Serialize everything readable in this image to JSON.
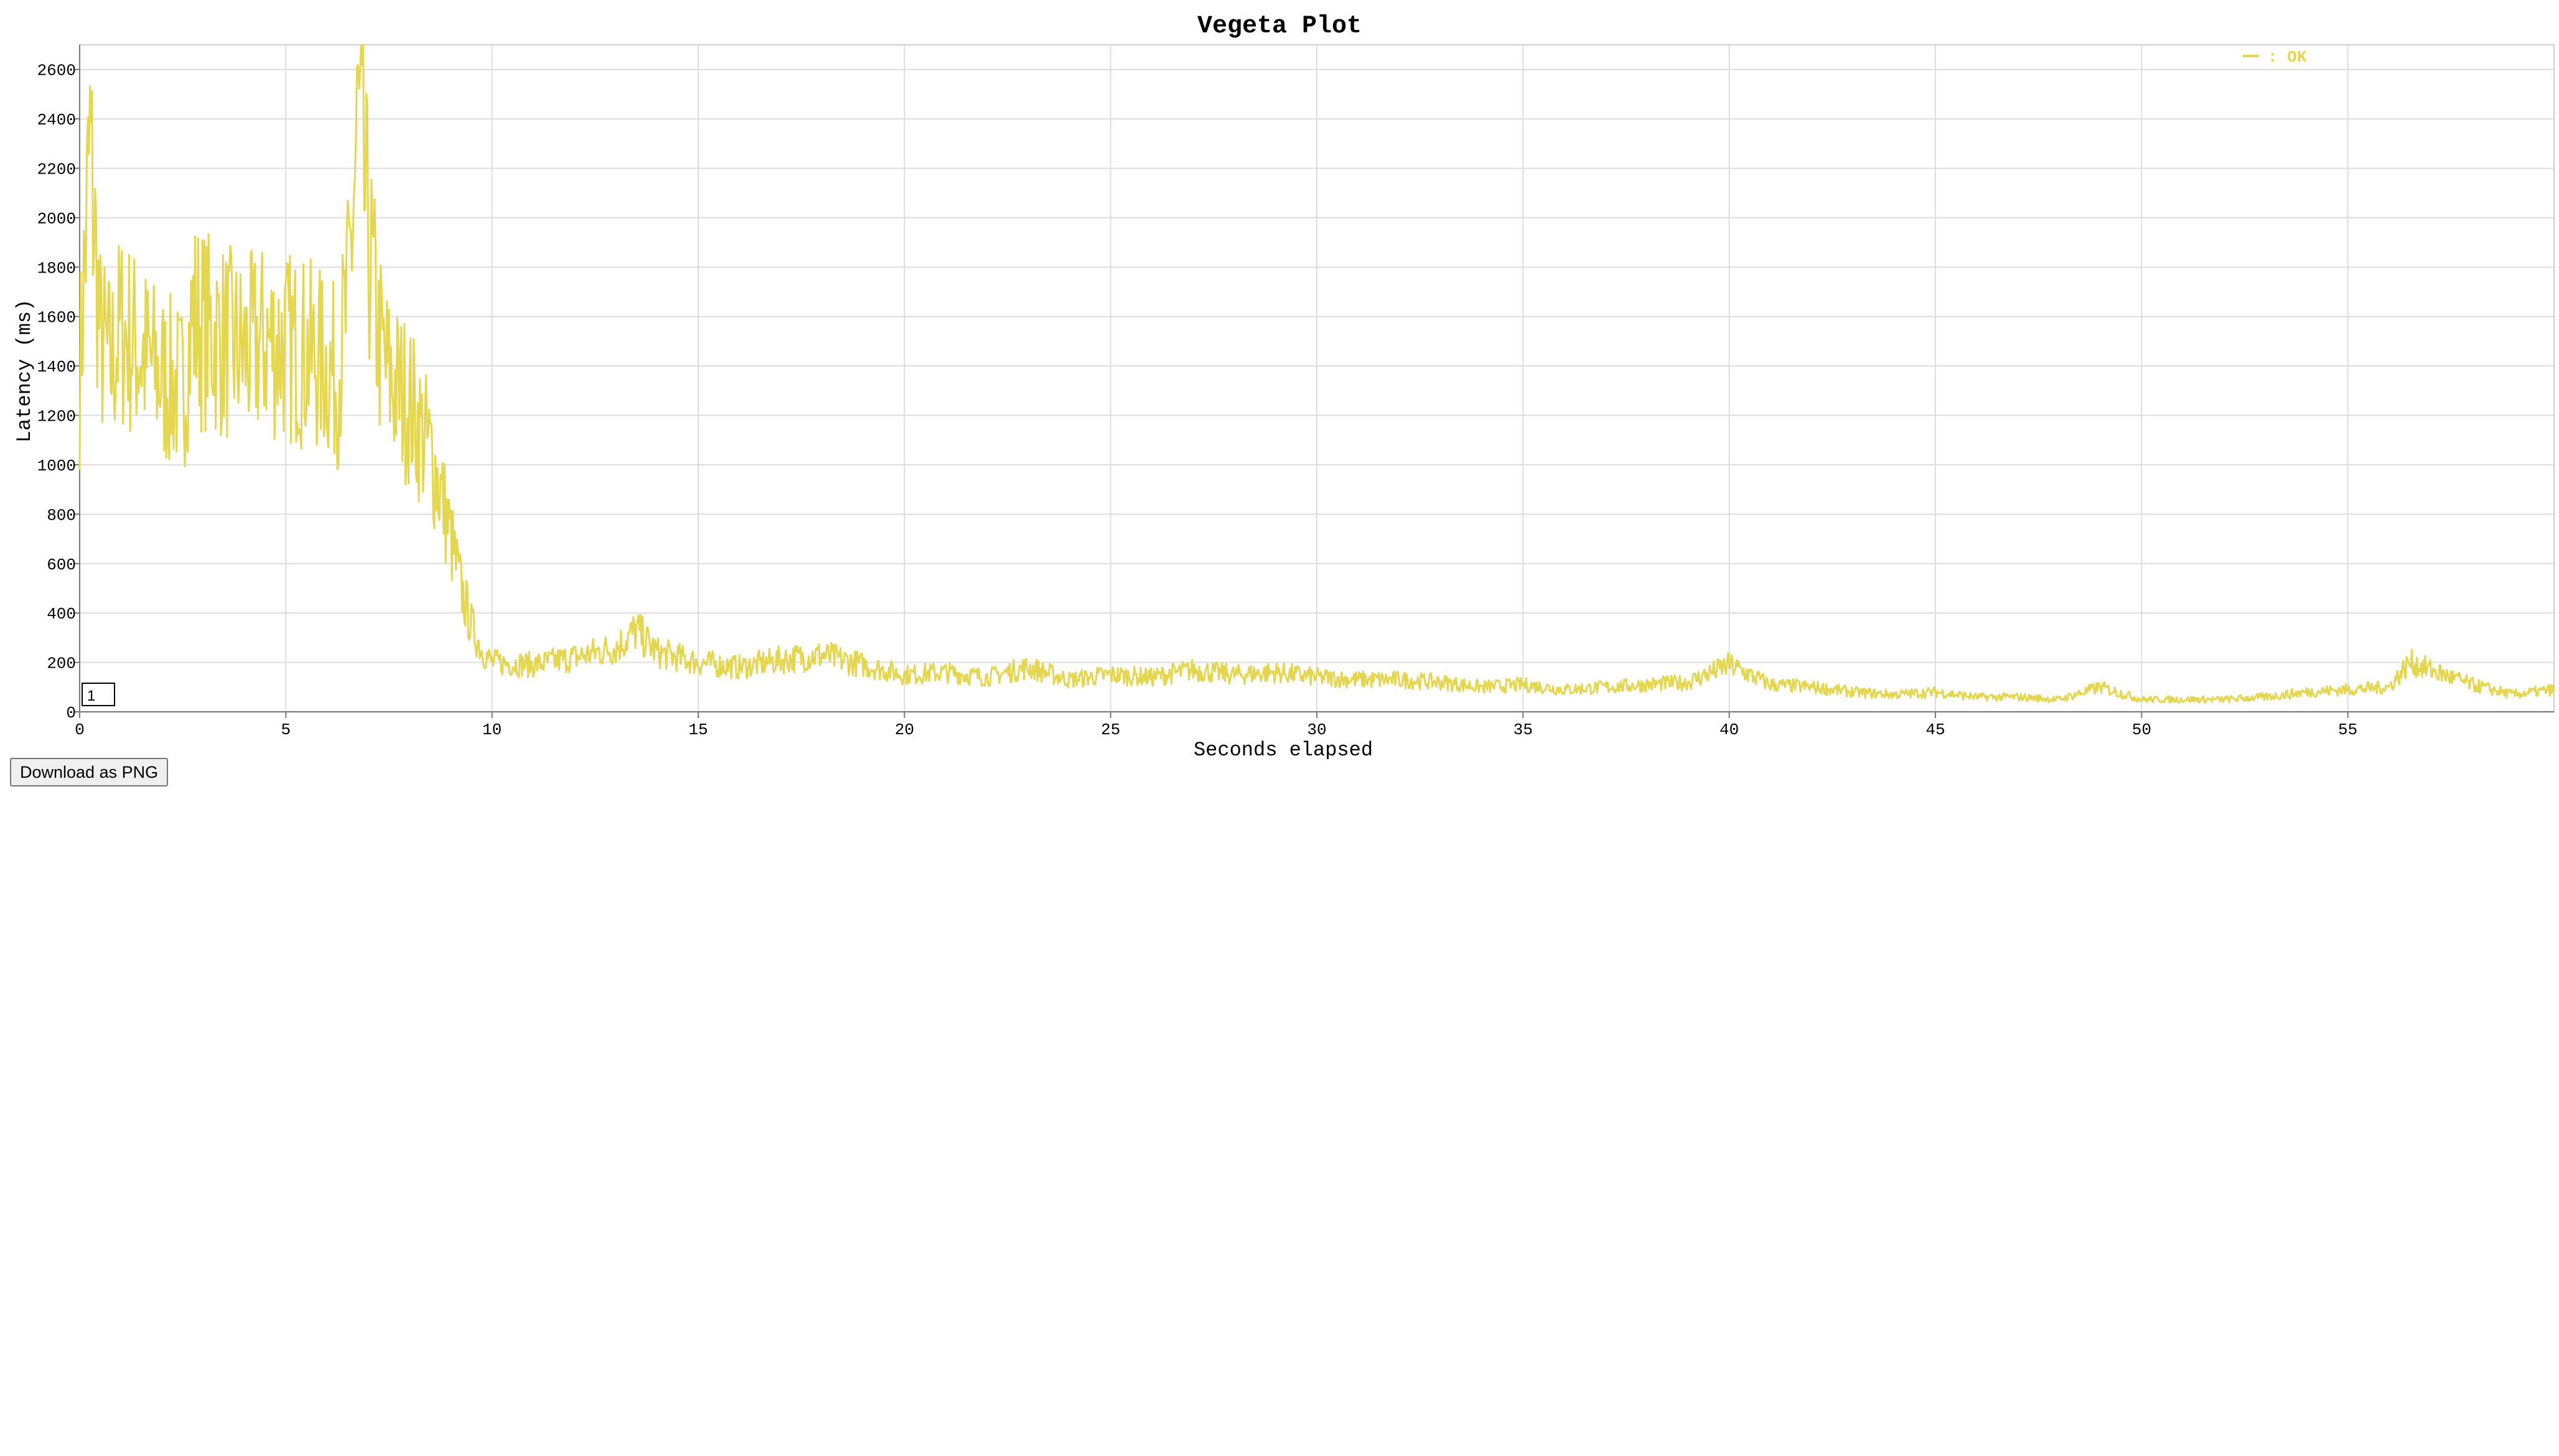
{
  "page": {
    "download_button_label": "Download as PNG"
  },
  "chart_data": {
    "type": "line",
    "title": "Vegeta Plot",
    "xlabel": "Seconds elapsed",
    "ylabel": "Latency (ms)",
    "xlim": [
      0,
      60
    ],
    "ylim": [
      0,
      2700
    ],
    "x_ticks": [
      "0",
      "5",
      "10",
      "15",
      "20",
      "25",
      "30",
      "35",
      "40",
      "45",
      "50",
      "55"
    ],
    "y_ticks": [
      "0",
      "200",
      "400",
      "600",
      "800",
      "1000",
      "1200",
      "1400",
      "1600",
      "1800",
      "2000",
      "2200",
      "2400",
      "2600"
    ],
    "grid": true,
    "legend_position": "top-right",
    "range_selector_label": "1",
    "series": [
      {
        "name": "OK",
        "color": "#e5d64f",
        "x": [
          0,
          0.25,
          0.5,
          0.75,
          1,
          1.5,
          2,
          2.5,
          2.75,
          3,
          3.5,
          4,
          4.5,
          5,
          5.5,
          6,
          6.25,
          6.5,
          6.75,
          7,
          7.25,
          7.5,
          7.75,
          8,
          8.25,
          8.5,
          8.75,
          9,
          9.25,
          9.5,
          9.75,
          10,
          11,
          12,
          13,
          13.5,
          14,
          15,
          16,
          17,
          18,
          19,
          20,
          21,
          22,
          23,
          24,
          25,
          26,
          27,
          28,
          29,
          30,
          31,
          32,
          33,
          34,
          35,
          36,
          37,
          38,
          39,
          40,
          41,
          42,
          43,
          44,
          45,
          46,
          47,
          48,
          49,
          50,
          51,
          52,
          53,
          54,
          55,
          56,
          56.5,
          57,
          58,
          59,
          60
        ],
        "y": [
          1350,
          2300,
          1500,
          1400,
          1550,
          1450,
          1350,
          1300,
          1600,
          1550,
          1500,
          1450,
          1500,
          1480,
          1450,
          1400,
          1350,
          1650,
          2400,
          1900,
          1500,
          1350,
          1300,
          1250,
          1150,
          1050,
          900,
          700,
          500,
          350,
          250,
          200,
          190,
          220,
          260,
          330,
          240,
          200,
          180,
          210,
          230,
          190,
          150,
          160,
          140,
          180,
          130,
          150,
          140,
          170,
          150,
          160,
          140,
          130,
          130,
          120,
          100,
          110,
          90,
          100,
          110,
          120,
          190,
          110,
          100,
          80,
          70,
          80,
          60,
          60,
          50,
          100,
          50,
          50,
          50,
          60,
          80,
          90,
          100,
          200,
          170,
          110,
          70,
          90
        ]
      }
    ]
  }
}
